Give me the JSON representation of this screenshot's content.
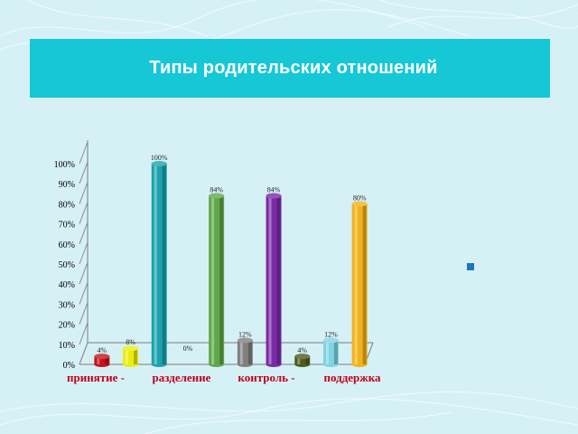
{
  "slide": {
    "title": "Типы родительских отношений",
    "colors": {
      "background": "#d6f1f6",
      "banner": "#16c7d6"
    },
    "bullet_icon": "square-bullet-icon"
  },
  "chart_data": {
    "type": "bar",
    "title": "",
    "xlabel": "",
    "ylabel": "",
    "ylim": [
      0,
      100
    ],
    "yticks": [
      "0%",
      "10%",
      "20%",
      "30%",
      "40%",
      "50%",
      "60%",
      "70%",
      "80%",
      "90%",
      "100%"
    ],
    "grid": false,
    "legend": "none",
    "categories": [
      "принятие -",
      "разделение",
      "контроль -",
      "поддержка"
    ],
    "bars": [
      {
        "value": 4,
        "label": "4%",
        "color": "#c3141c"
      },
      {
        "value": 8,
        "label": "8%",
        "color": "#ecec10"
      },
      {
        "value": 100,
        "label": "100%",
        "color": "#1ba2ad"
      },
      {
        "value": 0,
        "label": "0%",
        "color": "#b0b0b0"
      },
      {
        "value": 84,
        "label": "84%",
        "color": "#5fa84a"
      },
      {
        "value": 12,
        "label": "12%",
        "color": "#808080"
      },
      {
        "value": 84,
        "label": "84%",
        "color": "#7b2aa6"
      },
      {
        "value": 4,
        "label": "4%",
        "color": "#4e5b1d"
      },
      {
        "value": 12,
        "label": "12%",
        "color": "#7fd3e3"
      },
      {
        "value": 80,
        "label": "80%",
        "color": "#f2b21a"
      }
    ]
  }
}
